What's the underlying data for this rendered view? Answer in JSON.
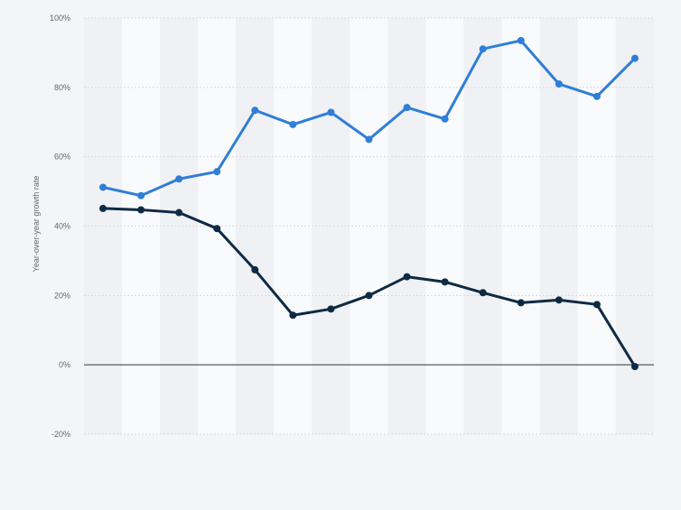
{
  "chart_data": {
    "type": "line",
    "title": "",
    "xlabel": "",
    "ylabel": "Year-over-year growth rate",
    "ylim": [
      -20,
      100
    ],
    "yticks": [
      -20,
      0,
      20,
      40,
      60,
      80,
      100
    ],
    "ytick_labels": [
      "-20%",
      "0%",
      "20%",
      "40%",
      "60%",
      "80%",
      "100%"
    ],
    "grid": true,
    "categories": [
      "",
      "",
      "",
      "",
      "",
      "",
      "",
      "",
      "",
      "",
      "",
      "",
      "",
      "",
      ""
    ],
    "series": [
      {
        "color": "#2f7ed8",
        "values": [
          51.2,
          48.8,
          53.6,
          55.7,
          73.4,
          69.3,
          72.8,
          65.0,
          74.2,
          70.9,
          91.1,
          93.5,
          81.0,
          77.4,
          88.4
        ]
      },
      {
        "color": "#0d2a45",
        "values": [
          45.1,
          44.7,
          43.9,
          39.3,
          27.4,
          14.3,
          16.1,
          20.0,
          25.4,
          23.9,
          20.8,
          17.9,
          18.7,
          17.4,
          -0.5
        ]
      }
    ]
  }
}
